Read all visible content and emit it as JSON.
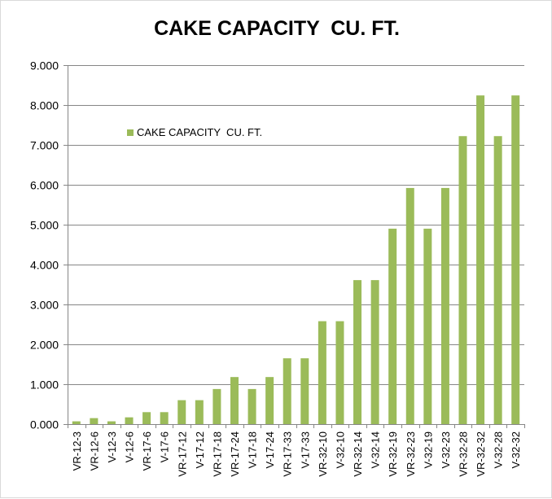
{
  "chart_data": {
    "type": "bar",
    "title": "CAKE CAPACITY  CU. FT.",
    "xlabel": "",
    "ylabel": "",
    "ylim": [
      0,
      9
    ],
    "yticks": [
      "0.000",
      "1.000",
      "2.000",
      "3.000",
      "4.000",
      "5.000",
      "6.000",
      "7.000",
      "8.000",
      "9.000"
    ],
    "grid": true,
    "legend_position": "top-left",
    "categories": [
      "VR-12-3",
      "VR-12-6",
      "V-12-3",
      "V-12-6",
      "VR-17-6",
      "V-17-6",
      "VR-17-12",
      "V-17-12",
      "VR-17-18",
      "VR-17-24",
      "V-17-18",
      "V-17-24",
      "VR-17-33",
      "V-17-33",
      "VR-32-10",
      "V-32-10",
      "VR-32-14",
      "V-32-14",
      "VR-32-19",
      "VR-32-23",
      "V-32-19",
      "V-32-23",
      "VR-32-28",
      "VR-32-32",
      "V-32-28",
      "V-32-32"
    ],
    "series": [
      {
        "name": "CAKE CAPACITY  CU. FT.",
        "color": "#9bbb59",
        "values": [
          0.07,
          0.15,
          0.07,
          0.17,
          0.3,
          0.3,
          0.6,
          0.6,
          0.88,
          1.18,
          0.88,
          1.18,
          1.65,
          1.65,
          2.58,
          2.58,
          3.61,
          3.61,
          4.9,
          5.92,
          4.9,
          5.92,
          7.22,
          8.24,
          7.22,
          8.24
        ]
      }
    ]
  }
}
